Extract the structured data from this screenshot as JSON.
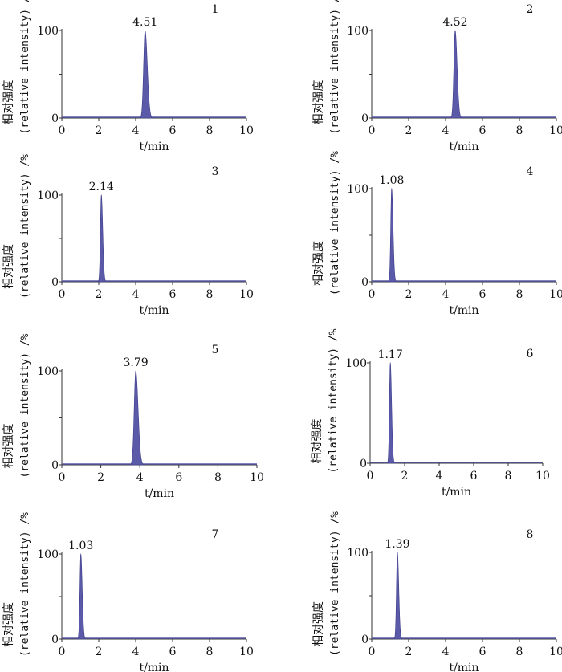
{
  "chart_data": [
    {
      "type": "line",
      "panel_label": "1",
      "peak_rt": 4.51,
      "peak_label": "4.51",
      "xlabel": "t/min",
      "ylabel_cn": "相对强度",
      "ylabel_en": "(relative intensity) /%",
      "xlim": [
        0,
        10
      ],
      "xticks": [
        "0",
        "2",
        "4",
        "6",
        "8",
        "10"
      ],
      "ylim": [
        0,
        100
      ],
      "yticks": [
        "0",
        "100"
      ],
      "peak_width": 0.08
    },
    {
      "type": "line",
      "panel_label": "2",
      "peak_rt": 4.52,
      "peak_label": "4.52",
      "xlabel": "t/min",
      "ylabel_cn": "相对强度",
      "ylabel_en": "(relative intensity) /%",
      "xlim": [
        0,
        10
      ],
      "xticks": [
        "0",
        "2",
        "4",
        "6",
        "8",
        "10"
      ],
      "ylim": [
        0,
        100
      ],
      "yticks": [
        "0",
        "100"
      ],
      "peak_width": 0.07
    },
    {
      "type": "line",
      "panel_label": "3",
      "peak_rt": 2.14,
      "peak_label": "2.14",
      "xlabel": "t/min",
      "ylabel_cn": "相对强度",
      "ylabel_en": "(relative intensity) /%",
      "xlim": [
        0,
        10
      ],
      "xticks": [
        "0",
        "2",
        "4",
        "6",
        "8",
        "10"
      ],
      "ylim": [
        0,
        100
      ],
      "yticks": [
        "0",
        "100"
      ],
      "peak_width": 0.05
    },
    {
      "type": "line",
      "panel_label": "4",
      "peak_rt": 1.08,
      "peak_label": "1.08",
      "xlabel": "t/min",
      "ylabel_cn": "相对强度",
      "ylabel_en": "(relative intensity) /%",
      "xlim": [
        0,
        10
      ],
      "xticks": [
        "0",
        "2",
        "4",
        "6",
        "8",
        "10"
      ],
      "ylim": [
        0,
        100
      ],
      "yticks": [
        "0",
        "100"
      ],
      "peak_width": 0.05
    },
    {
      "type": "line",
      "panel_label": "5",
      "peak_rt": 3.79,
      "peak_label": "3.79",
      "xlabel": "t/min",
      "ylabel_cn": "相对强度",
      "ylabel_en": "(relative intensity) /%",
      "xlim": [
        0,
        10
      ],
      "xticks": [
        "0",
        "2",
        "4",
        "6",
        "8",
        "10"
      ],
      "ylim": [
        0,
        100
      ],
      "yticks": [
        "0",
        "100"
      ],
      "peak_width": 0.08
    },
    {
      "type": "line",
      "panel_label": "6",
      "peak_rt": 1.17,
      "peak_label": "1.17",
      "xlabel": "t/min",
      "ylabel_cn": "相对强度",
      "ylabel_en": "(relative intensity) /%",
      "xlim": [
        0,
        10
      ],
      "xticks": [
        "0",
        "2",
        "4",
        "6",
        "8",
        "10"
      ],
      "ylim": [
        0,
        100
      ],
      "yticks": [
        "0",
        "100"
      ],
      "peak_width": 0.05
    },
    {
      "type": "line",
      "panel_label": "7",
      "peak_rt": 1.03,
      "peak_label": "1.03",
      "xlabel": "t/min",
      "ylabel_cn": "相对强度",
      "ylabel_en": "(relative intensity) /%",
      "xlim": [
        0,
        10
      ],
      "xticks": [
        "0",
        "2",
        "4",
        "6",
        "8",
        "10"
      ],
      "ylim": [
        0,
        100
      ],
      "yticks": [
        "0",
        "100"
      ],
      "peak_width": 0.05
    },
    {
      "type": "line",
      "panel_label": "8",
      "peak_rt": 1.39,
      "peak_label": "1.39",
      "xlabel": "t/min",
      "ylabel_cn": "相对强度",
      "ylabel_en": "(relative intensity) /%",
      "xlim": [
        0,
        10
      ],
      "xticks": [
        "0",
        "2",
        "4",
        "6",
        "8",
        "10"
      ],
      "ylim": [
        0,
        100
      ],
      "yticks": [
        "0",
        "100"
      ],
      "peak_width": 0.05
    }
  ],
  "colors": {
    "peak_fill": "#5a5aa8",
    "peak_stroke": "#3d3d8a",
    "baseline": "#5a5aa8",
    "axis": "#333333"
  }
}
